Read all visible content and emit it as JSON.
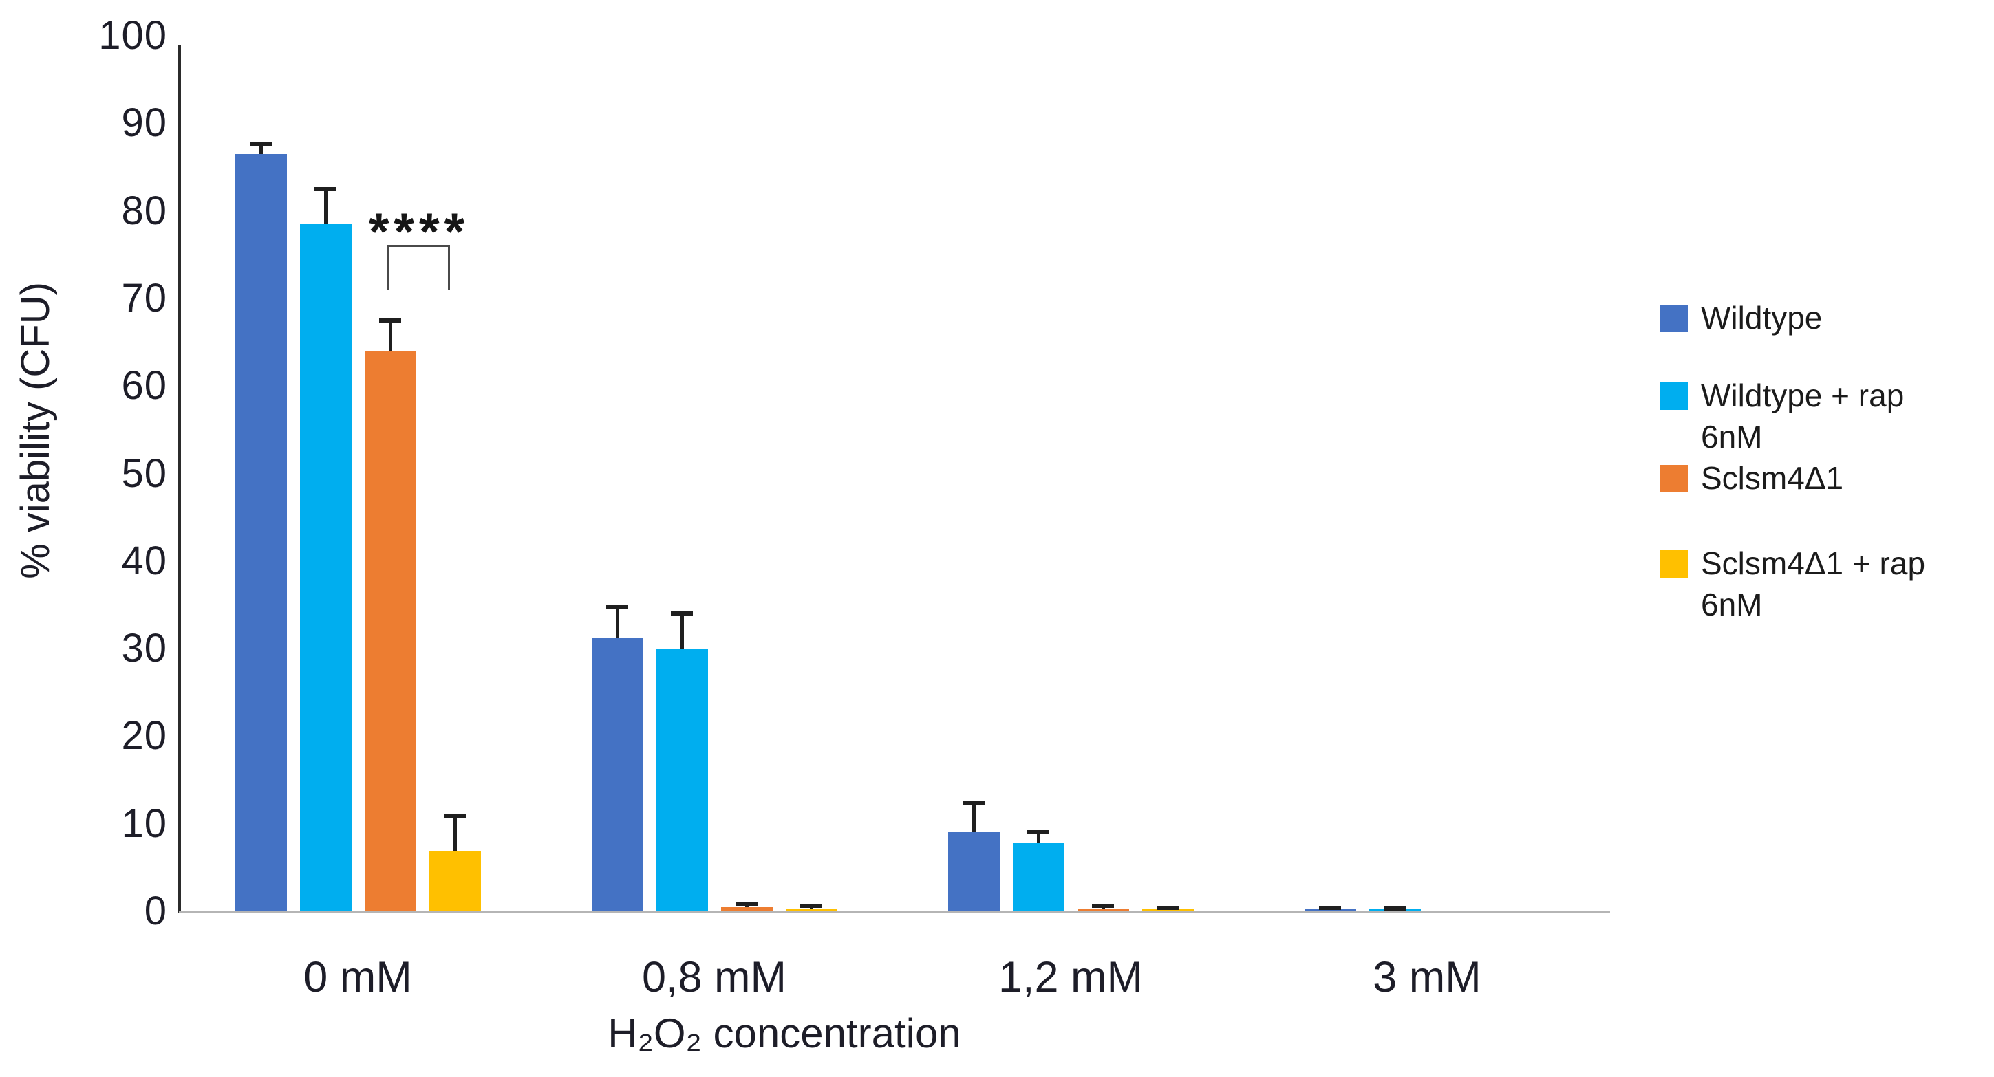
{
  "chart_data": {
    "type": "bar",
    "title": "",
    "categories": [
      "0 mM",
      "0,8 mM",
      "1,2 mM",
      "3 mM"
    ],
    "series": [
      {
        "name": "Wildtype",
        "legend_lines": [
          "Wildtype"
        ],
        "color": "#4472C4",
        "values": [
          86.5,
          31.3,
          9.0,
          0.2
        ],
        "errors": [
          1.2,
          3.4,
          3.3,
          0.2
        ]
      },
      {
        "name": "Wildtype + rap 6nM",
        "legend_lines": [
          "Wildtype + rap",
          "6nM"
        ],
        "color": "#00AEEF",
        "values": [
          78.5,
          30.0,
          7.8,
          0.2
        ],
        "errors": [
          4.0,
          4.0,
          1.2,
          0.1
        ]
      },
      {
        "name": "Sclsm4Δ1",
        "legend_lines": [
          "Sclsm4Δ1"
        ],
        "color": "#ED7D31",
        "values": [
          64.0,
          0.5,
          0.3,
          0
        ],
        "errors": [
          3.5,
          0.4,
          0.3,
          0
        ]
      },
      {
        "name": "Sclsm4Δ1 + rap 6nM",
        "legend_lines": [
          "Sclsm4Δ1 + rap",
          "6nM"
        ],
        "color": "#FFC000",
        "values": [
          6.8,
          0.3,
          0.2,
          0
        ],
        "errors": [
          4.1,
          0.3,
          0.2,
          0
        ]
      }
    ],
    "xlabel": "H₂O₂ concentration",
    "ylabel": "% viability (CFU)",
    "ylim": [
      0,
      100
    ],
    "yticks": [
      0,
      10,
      20,
      30,
      40,
      50,
      60,
      70,
      80,
      90,
      100
    ],
    "grid": false,
    "legend_position": "right",
    "annotation": {
      "text": "****",
      "category": "0 mM",
      "compares": [
        "Sclsm4Δ1",
        "Sclsm4Δ1 + rap 6nM"
      ]
    }
  }
}
